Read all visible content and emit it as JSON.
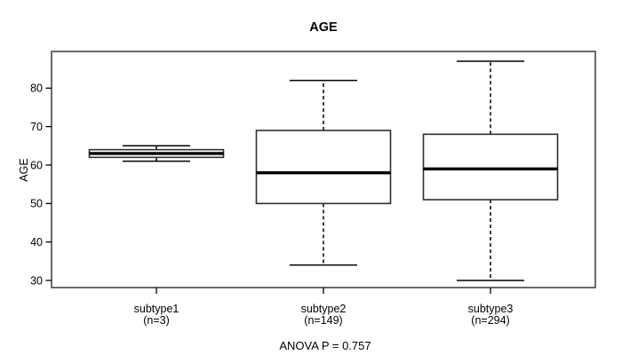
{
  "title": "AGE",
  "footer": "ANOVA P = 0.757",
  "y_axis": {
    "label": "AGE"
  },
  "colors": {
    "line": "#000000",
    "plot_border": "#595959",
    "box_stroke": "#2f2f2f",
    "background": "#ffffff"
  },
  "chart_data": {
    "type": "boxplot",
    "title": "AGE",
    "ylabel": "AGE",
    "xlabel": "",
    "annotation": "ANOVA P = 0.757",
    "grid": false,
    "legend": null,
    "ylim": [
      28,
      90
    ],
    "yticks": [
      30,
      40,
      50,
      60,
      70,
      80
    ],
    "categories": [
      {
        "label": "subtype1",
        "sublabel": "(n=3)"
      },
      {
        "label": "subtype2",
        "sublabel": "(n=149)"
      },
      {
        "label": "subtype3",
        "sublabel": "(n=294)"
      }
    ],
    "series": [
      {
        "name": "subtype1",
        "n": 3,
        "whisker_low": 61,
        "q1": 62,
        "median": 63,
        "q3": 64,
        "whisker_high": 65
      },
      {
        "name": "subtype2",
        "n": 149,
        "whisker_low": 34,
        "q1": 50,
        "median": 58,
        "q3": 69,
        "whisker_high": 82
      },
      {
        "name": "subtype3",
        "n": 294,
        "whisker_low": 30,
        "q1": 51,
        "median": 59,
        "q3": 68,
        "whisker_high": 87
      }
    ]
  }
}
